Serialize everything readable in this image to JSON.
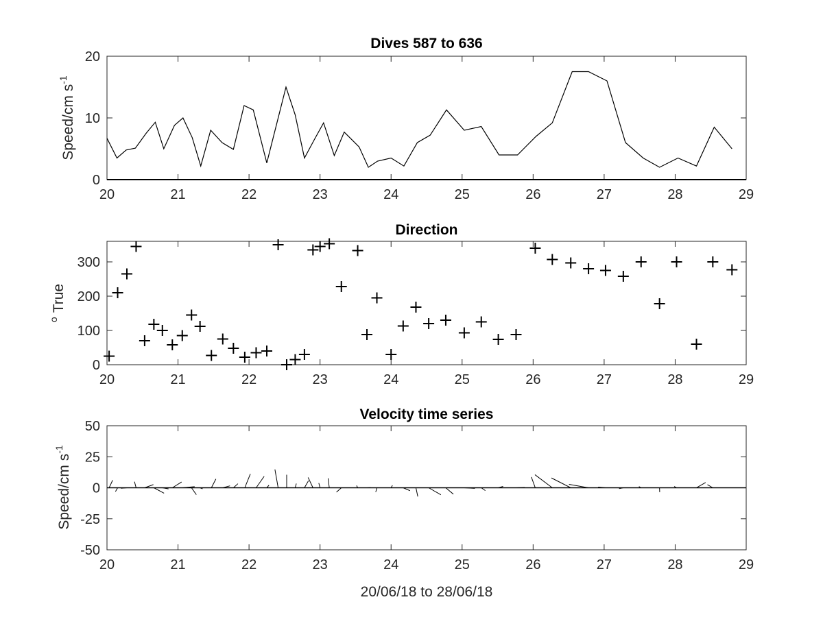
{
  "chart_data": [
    {
      "id": "speed",
      "type": "line",
      "title": "Dives 587 to 636",
      "ylabel": "Speed/cm s",
      "ylabel_sup": "-1",
      "xlim": [
        20,
        29
      ],
      "ylim": [
        0,
        20
      ],
      "xticks": [
        20,
        21,
        22,
        23,
        24,
        25,
        26,
        27,
        28,
        29
      ],
      "yticks": [
        0,
        10,
        20
      ],
      "grid": false,
      "color": "#000000",
      "x": [
        20.0,
        20.14,
        20.27,
        20.4,
        20.55,
        20.68,
        20.8,
        20.95,
        21.07,
        21.2,
        21.32,
        21.46,
        21.62,
        21.78,
        21.93,
        22.06,
        22.25,
        22.52,
        22.65,
        22.78,
        22.92,
        23.05,
        23.2,
        23.34,
        23.55,
        23.68,
        23.81,
        24.0,
        24.18,
        24.37,
        24.55,
        24.78,
        25.03,
        25.27,
        25.52,
        25.78,
        26.04,
        26.27,
        26.55,
        26.78,
        27.04,
        27.3,
        27.55,
        27.78,
        28.04,
        28.3,
        28.55,
        28.8
      ],
      "y": [
        6.7,
        3.5,
        4.8,
        5.1,
        7.5,
        9.3,
        5.0,
        8.8,
        10.0,
        6.8,
        2.2,
        8.0,
        6.0,
        4.9,
        12.0,
        11.3,
        2.7,
        15.0,
        10.5,
        3.5,
        6.5,
        9.2,
        3.9,
        7.7,
        5.3,
        2.0,
        3.0,
        3.5,
        2.2,
        6.0,
        7.2,
        11.3,
        8.0,
        8.6,
        4.0,
        4.0,
        7.0,
        9.2,
        17.5,
        17.5,
        16.0,
        6.0,
        3.5,
        2.0,
        3.5,
        2.2,
        8.5,
        5.0
      ]
    },
    {
      "id": "direction",
      "type": "scatter",
      "marker": "+",
      "title": "Direction",
      "ylabel": "True",
      "ylabel_sup": "o",
      "xlim": [
        20,
        29
      ],
      "ylim": [
        0,
        360
      ],
      "xticks": [
        20,
        21,
        22,
        23,
        24,
        25,
        26,
        27,
        28,
        29
      ],
      "yticks": [
        0,
        100,
        200,
        300
      ],
      "grid": false,
      "color": "#000000",
      "x": [
        20.03,
        20.15,
        20.28,
        20.41,
        20.53,
        20.66,
        20.78,
        20.92,
        21.06,
        21.19,
        21.31,
        21.47,
        21.63,
        21.78,
        21.94,
        22.1,
        22.25,
        22.41,
        22.53,
        22.65,
        22.78,
        22.9,
        23.0,
        23.13,
        23.3,
        23.53,
        23.66,
        23.8,
        24.0,
        24.17,
        24.35,
        24.53,
        24.77,
        25.03,
        25.27,
        25.51,
        25.76,
        26.03,
        26.27,
        26.53,
        26.78,
        27.02,
        27.27,
        27.52,
        27.78,
        28.02,
        28.3,
        28.53,
        28.8
      ],
      "y": [
        25,
        210,
        265,
        345,
        70,
        118,
        100,
        58,
        85,
        145,
        112,
        27,
        75,
        48,
        22,
        35,
        40,
        350,
        0,
        15,
        30,
        335,
        345,
        353,
        228,
        333,
        88,
        195,
        30,
        113,
        168,
        120,
        130,
        93,
        125,
        74,
        88,
        340,
        307,
        297,
        280,
        275,
        258,
        300,
        178,
        300,
        60,
        300,
        277
      ]
    },
    {
      "id": "velocity",
      "type": "stick",
      "title": "Velocity time series",
      "ylabel": "Speed/cm s",
      "ylabel_sup": "-1",
      "xlabel": "20/06/18 to 28/06/18",
      "xlim": [
        20,
        29
      ],
      "ylim": [
        -50,
        50
      ],
      "xticks": [
        20,
        21,
        22,
        23,
        24,
        25,
        26,
        27,
        28,
        29
      ],
      "yticks": [
        50,
        25,
        0,
        -25,
        -50
      ],
      "grid": false,
      "color": "#000000",
      "zero_line": true,
      "sticks_from": "direction and speed of the two panels above"
    }
  ]
}
